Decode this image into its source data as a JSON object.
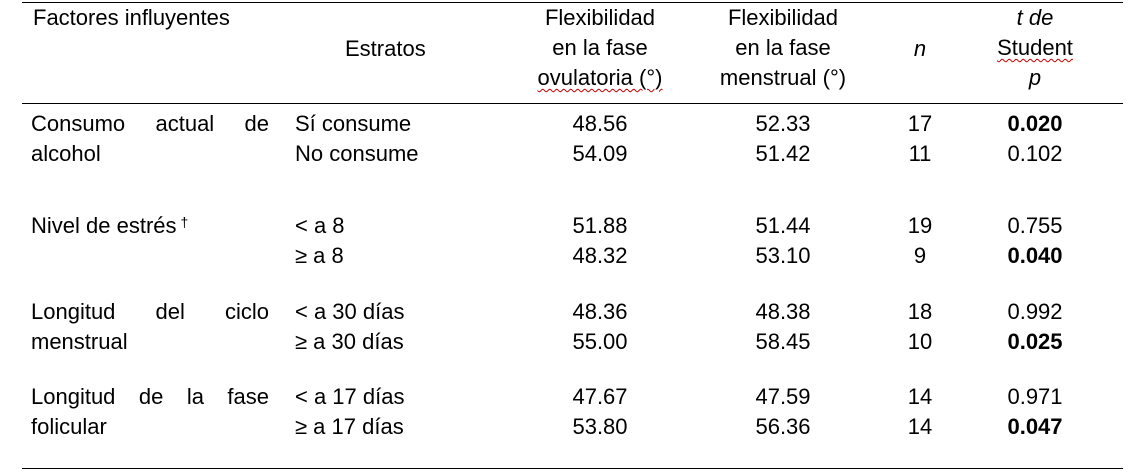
{
  "headers": {
    "factor": "Factores influyentes",
    "strata": "Estratos",
    "ovulatory": [
      "Flexibilidad",
      "en la fase",
      "ovulatoria (°)"
    ],
    "menstrual": [
      "Flexibilidad",
      "en la fase",
      "menstrual (°)"
    ],
    "n": "n",
    "t_test": [
      "t de",
      "Student",
      "p"
    ]
  },
  "rows": [
    {
      "factor_line1": "Consumo actual de",
      "factor_line2": "alcohol",
      "factor_dagger": "",
      "strata": [
        {
          "label": "Sí consume",
          "ovulatory": "48.56",
          "menstrual": "52.33",
          "n": "17",
          "p": "0.020",
          "p_bold": true
        },
        {
          "label": "No consume",
          "ovulatory": "54.09",
          "menstrual": "51.42",
          "n": "11",
          "p": "0.102",
          "p_bold": false
        }
      ]
    },
    {
      "factor_line1": "Nivel de estrés",
      "factor_line2": "",
      "factor_dagger": "†",
      "strata": [
        {
          "label": "< a 8",
          "ovulatory": "51.88",
          "menstrual": "51.44",
          "n": "19",
          "p": "0.755",
          "p_bold": false
        },
        {
          "label": "≥ a 8",
          "ovulatory": "48.32",
          "menstrual": "53.10",
          "n": "9",
          "p": "0.040",
          "p_bold": true
        }
      ]
    },
    {
      "factor_line1": "Longitud del ciclo",
      "factor_line2": "menstrual",
      "factor_dagger": "",
      "strata": [
        {
          "label": "< a 30 días",
          "ovulatory": "48.36",
          "menstrual": "48.38",
          "n": "18",
          "p": "0.992",
          "p_bold": false
        },
        {
          "label": "≥ a 30 días",
          "ovulatory": "55.00",
          "menstrual": "58.45",
          "n": "10",
          "p": "0.025",
          "p_bold": true
        }
      ]
    },
    {
      "factor_line1": "Longitud de la fase",
      "factor_line2": "folicular",
      "factor_dagger": "",
      "strata": [
        {
          "label": "< a 17 días",
          "ovulatory": "47.67",
          "menstrual": "47.59",
          "n": "14",
          "p": "0.971",
          "p_bold": false
        },
        {
          "label": "≥ a 17 días",
          "ovulatory": "53.80",
          "menstrual": "56.36",
          "n": "14",
          "p": "0.047",
          "p_bold": true
        }
      ]
    }
  ]
}
